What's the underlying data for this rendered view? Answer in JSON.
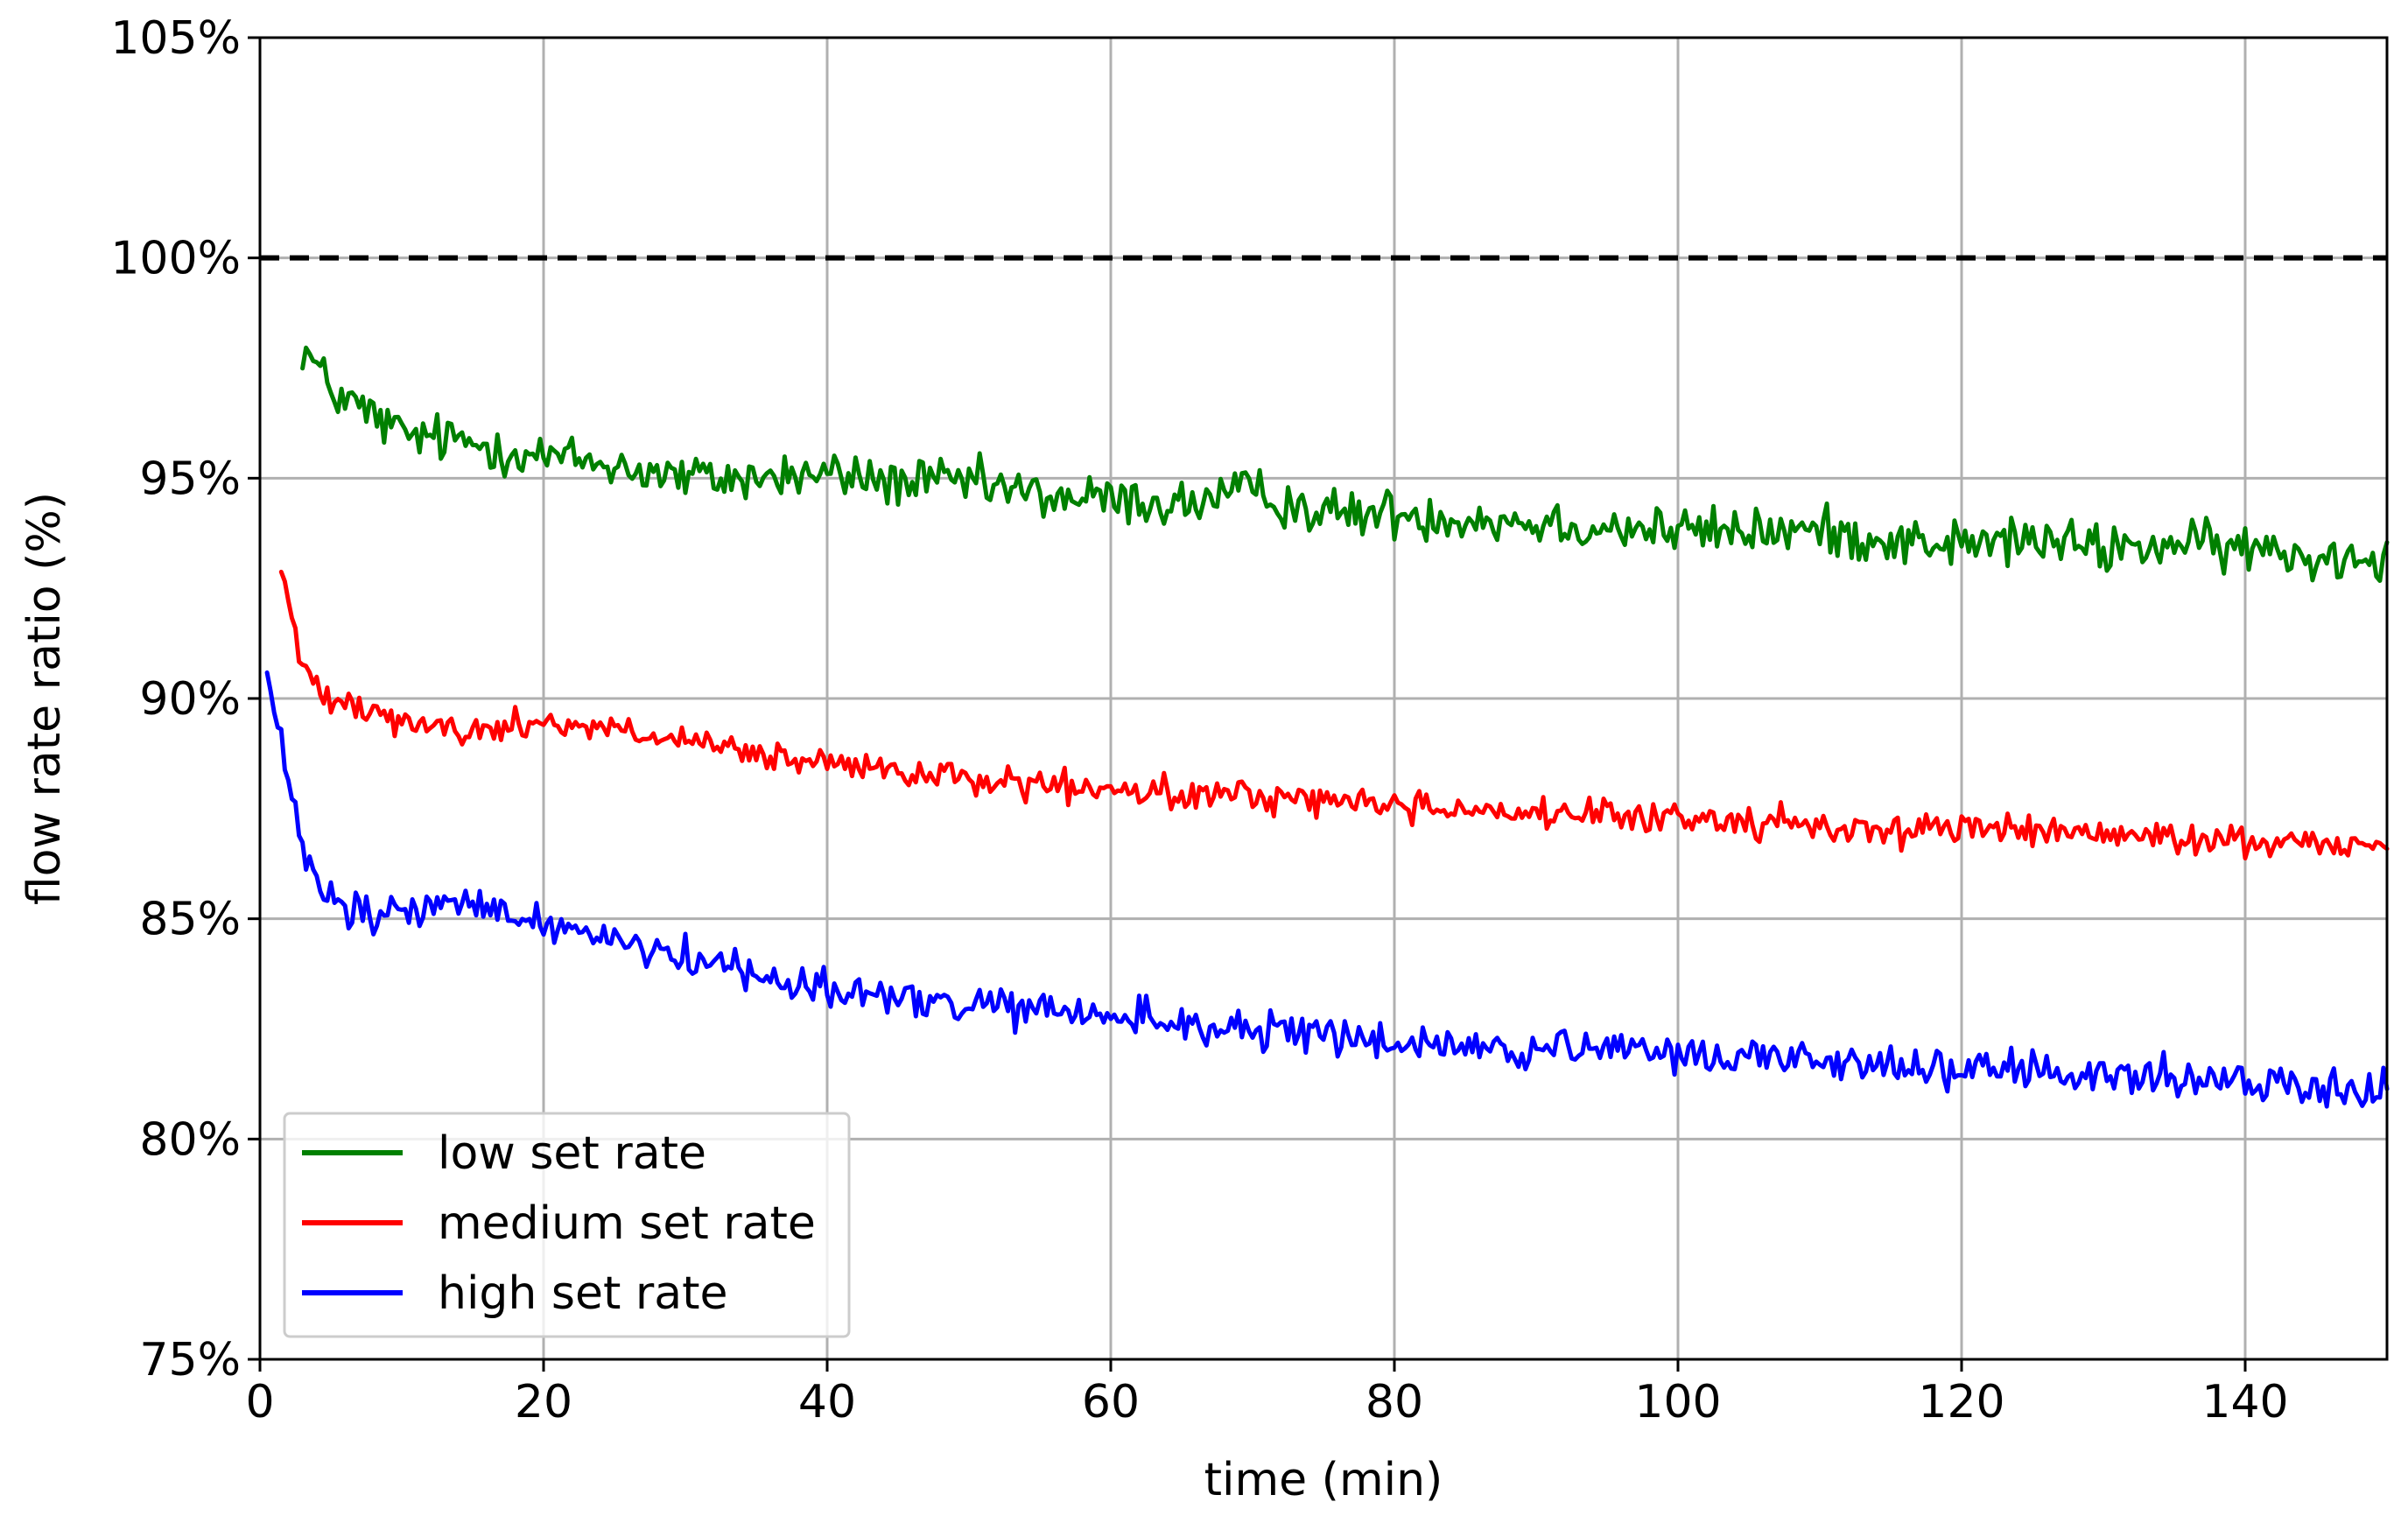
{
  "chart_data": {
    "type": "line",
    "title": "",
    "xlabel": "time (min)",
    "ylabel": "flow rate ratio (%)",
    "xlim": [
      0,
      150
    ],
    "ylim": [
      75,
      105
    ],
    "xticks": [
      0,
      20,
      40,
      60,
      80,
      100,
      120,
      140
    ],
    "xtick_labels": [
      "0",
      "20",
      "40",
      "60",
      "80",
      "100",
      "120",
      "140"
    ],
    "yticks": [
      75,
      80,
      85,
      90,
      95,
      100,
      105
    ],
    "ytick_labels": [
      "75%",
      "80%",
      "85%",
      "90%",
      "95%",
      "100%",
      "105%"
    ],
    "grid": true,
    "legend_position": "lower-left",
    "reference_line": {
      "y": 100,
      "style": "dashed",
      "color": "#000000"
    },
    "x": [
      3,
      5,
      8,
      10,
      15,
      20,
      25,
      30,
      35,
      40,
      45,
      50,
      55,
      60,
      65,
      70,
      75,
      80,
      85,
      90,
      95,
      100,
      105,
      110,
      115,
      120,
      125,
      130,
      135,
      140,
      145,
      150
    ],
    "series": [
      {
        "name": "low set rate",
        "color": "#008000",
        "start": 3,
        "noise": 0.55,
        "values": [
          98.0,
          97.0,
          96.4,
          96.0,
          95.8,
          95.5,
          95.3,
          95.0,
          95.0,
          95.1,
          94.9,
          94.9,
          94.6,
          94.5,
          94.4,
          94.7,
          94.2,
          94.2,
          94.1,
          94.0,
          93.9,
          93.8,
          93.8,
          93.8,
          93.6,
          93.5,
          93.6,
          93.4,
          93.5,
          93.4,
          93.2,
          93.3
        ]
      },
      {
        "name": "medium set rate",
        "color": "#ff0000",
        "start": 1.5,
        "noise": 0.35,
        "values": [
          90.6,
          90.1,
          89.8,
          89.5,
          89.2,
          89.5,
          89.3,
          89.0,
          88.7,
          88.5,
          88.3,
          88.2,
          88.0,
          87.9,
          87.8,
          87.8,
          87.7,
          87.6,
          87.5,
          87.4,
          87.3,
          87.3,
          87.2,
          87.1,
          87.0,
          87.1,
          87.0,
          86.9,
          86.8,
          86.8,
          86.7,
          86.7
        ]
      },
      {
        "name": "high set rate",
        "color": "#0000ff",
        "start": 0.5,
        "noise": 0.45,
        "values": [
          86.5,
          85.3,
          85.0,
          85.2,
          85.3,
          84.9,
          84.6,
          84.1,
          83.8,
          83.4,
          83.2,
          83.0,
          82.9,
          82.8,
          82.6,
          82.5,
          82.3,
          82.2,
          82.1,
          82.0,
          82.0,
          81.9,
          81.9,
          81.8,
          81.7,
          81.6,
          81.5,
          81.4,
          81.4,
          81.3,
          81.2,
          81.1
        ]
      }
    ]
  }
}
